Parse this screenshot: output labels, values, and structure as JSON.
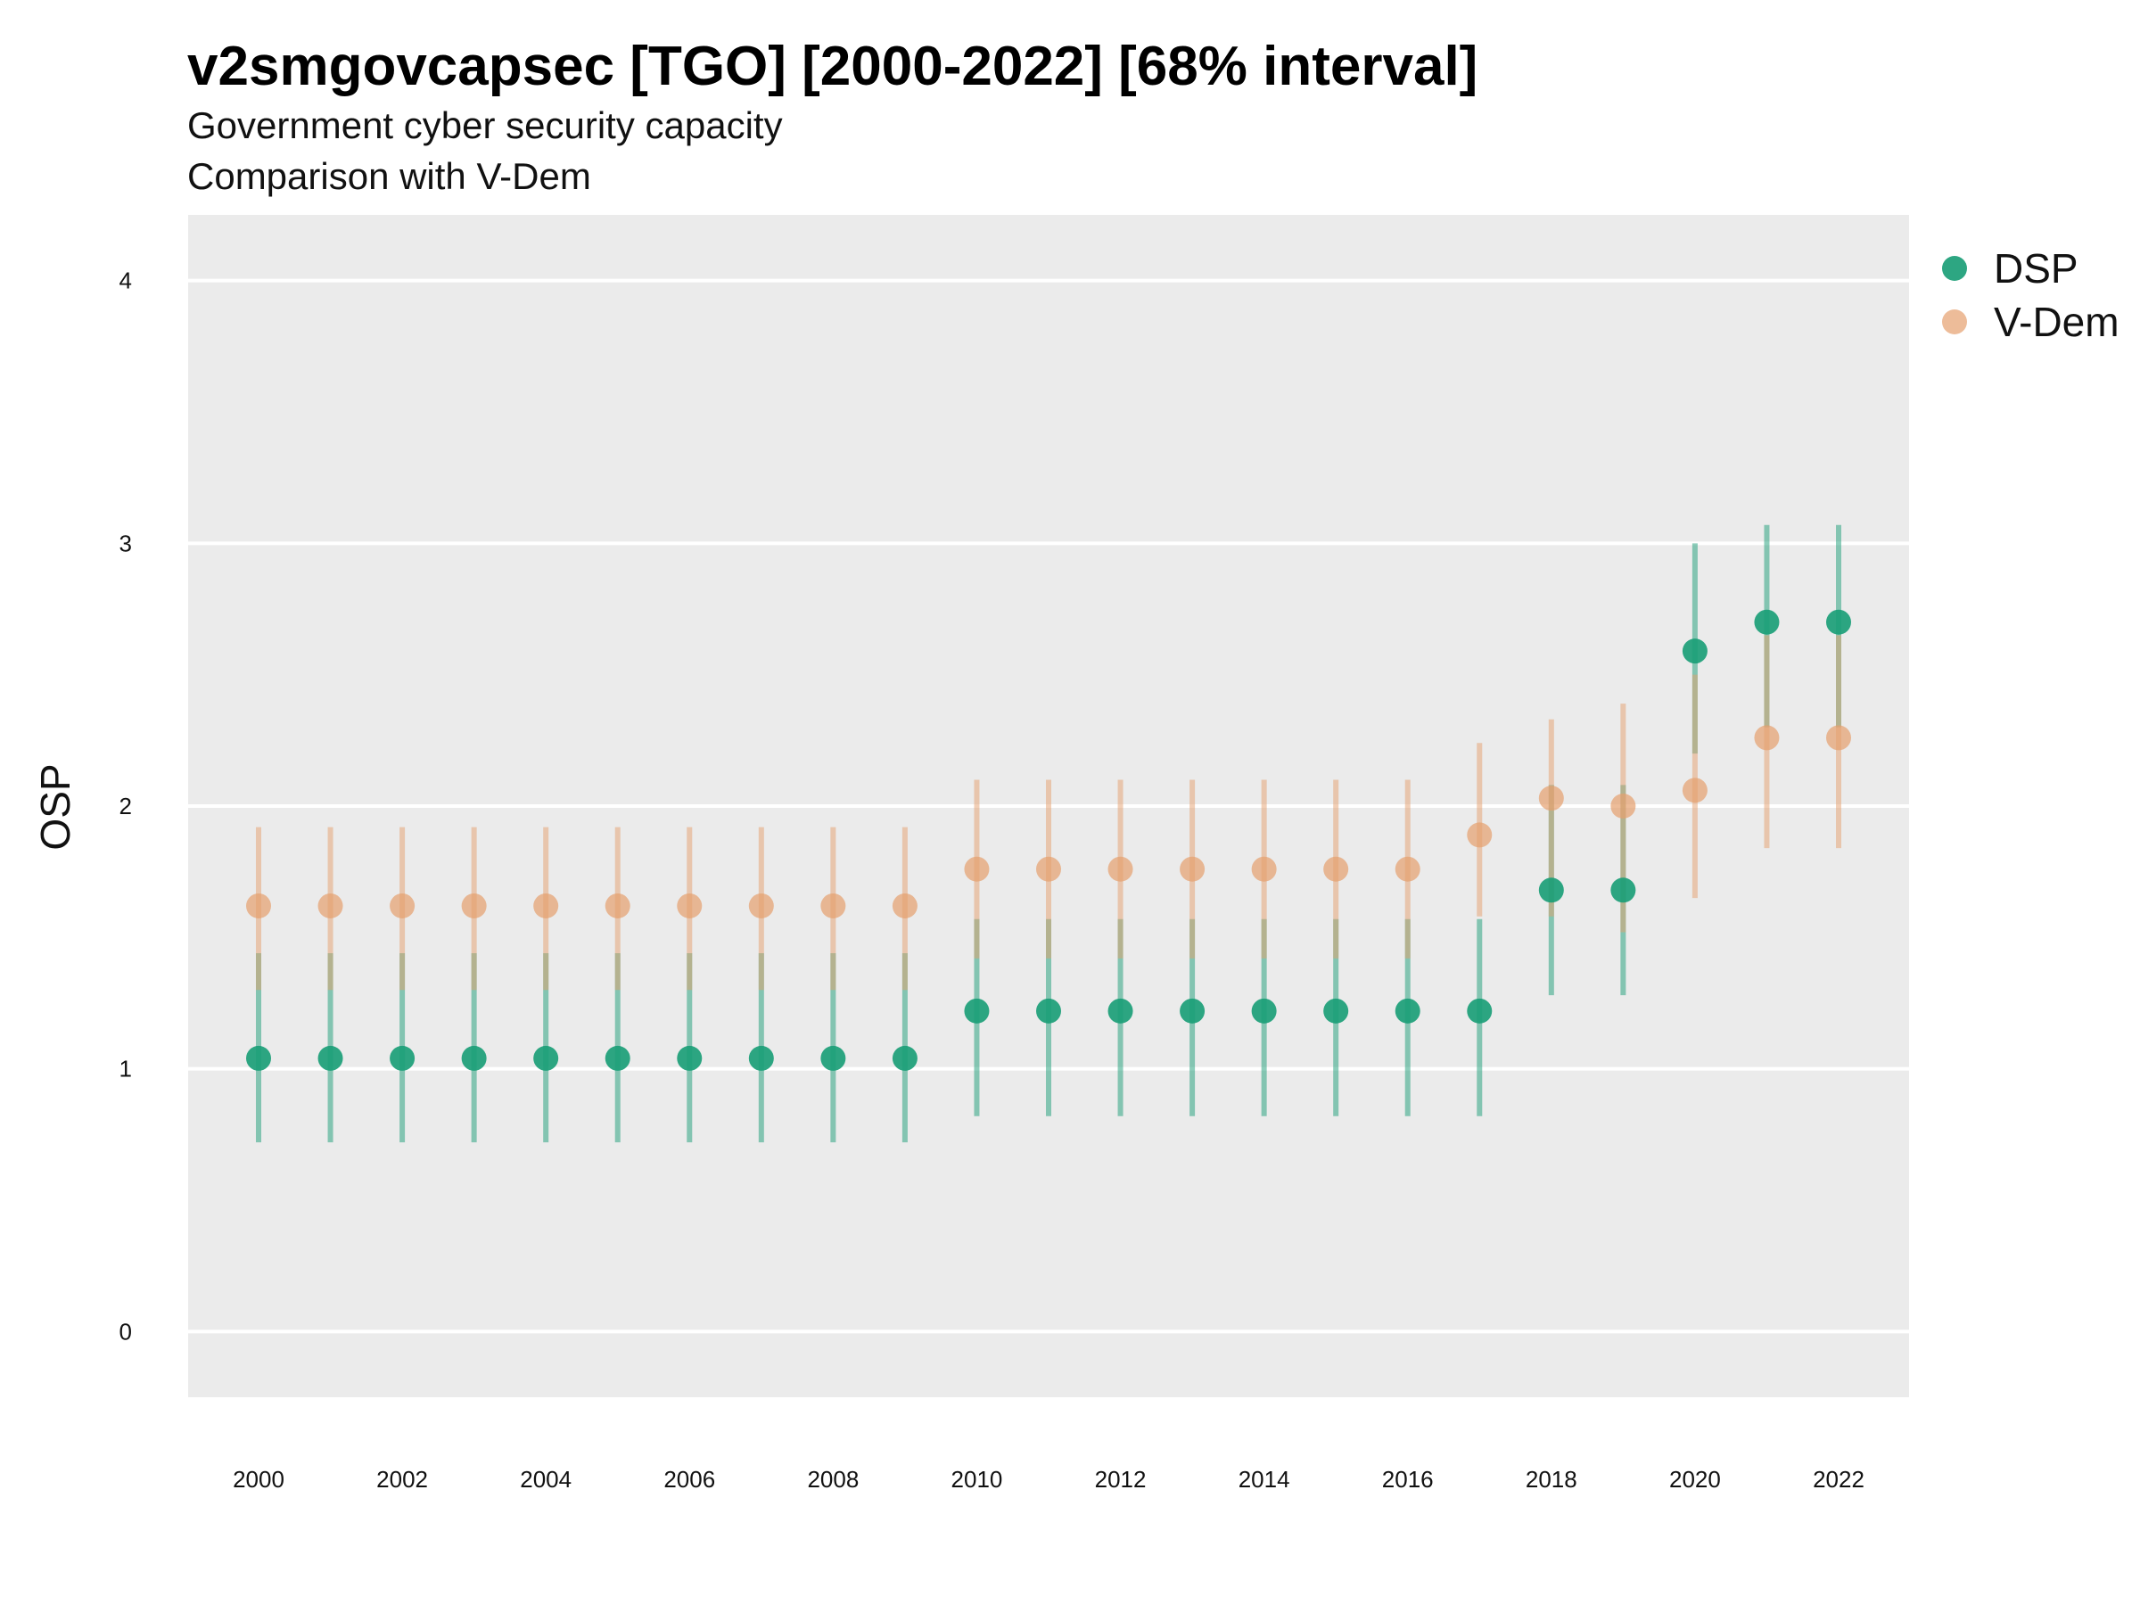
{
  "chart_data": {
    "type": "scatter",
    "title": "v2smgovcapsec [TGO] [2000-2022] [68% interval]",
    "subtitle": "Government cyber security capacity",
    "subtitle2": "Comparison with V-Dem",
    "ylabel": "OSP",
    "xlabel": "",
    "ylim": [
      -0.25,
      4.25
    ],
    "yticks": [
      0,
      1,
      2,
      3,
      4
    ],
    "xticks": [
      2000,
      2002,
      2004,
      2006,
      2008,
      2010,
      2012,
      2014,
      2016,
      2018,
      2020,
      2022
    ],
    "grid": true,
    "legend_position": "right",
    "colors": {
      "DSP": "#1b9e77",
      "V-Dem": "#e6a06e",
      "panel": "#ebebeb",
      "grid": "#ffffff"
    },
    "series": [
      {
        "name": "DSP",
        "x": [
          2000,
          2001,
          2002,
          2003,
          2004,
          2005,
          2006,
          2007,
          2008,
          2009,
          2010,
          2011,
          2012,
          2013,
          2014,
          2015,
          2016,
          2017,
          2018,
          2019,
          2020,
          2021,
          2022
        ],
        "y": [
          1.04,
          1.04,
          1.04,
          1.04,
          1.04,
          1.04,
          1.04,
          1.04,
          1.04,
          1.04,
          1.22,
          1.22,
          1.22,
          1.22,
          1.22,
          1.22,
          1.22,
          1.22,
          1.68,
          1.68,
          2.59,
          2.7,
          2.7
        ],
        "lower": [
          0.72,
          0.72,
          0.72,
          0.72,
          0.72,
          0.72,
          0.72,
          0.72,
          0.72,
          0.72,
          0.82,
          0.82,
          0.82,
          0.82,
          0.82,
          0.82,
          0.82,
          0.82,
          1.28,
          1.28,
          2.2,
          2.3,
          2.3
        ],
        "upper": [
          1.44,
          1.44,
          1.44,
          1.44,
          1.44,
          1.44,
          1.44,
          1.44,
          1.44,
          1.44,
          1.57,
          1.57,
          1.57,
          1.57,
          1.57,
          1.57,
          1.57,
          1.57,
          2.08,
          2.08,
          3.0,
          3.07,
          3.07
        ]
      },
      {
        "name": "V-Dem",
        "x": [
          2000,
          2001,
          2002,
          2003,
          2004,
          2005,
          2006,
          2007,
          2008,
          2009,
          2010,
          2011,
          2012,
          2013,
          2014,
          2015,
          2016,
          2017,
          2018,
          2019,
          2020,
          2021,
          2022
        ],
        "y": [
          1.62,
          1.62,
          1.62,
          1.62,
          1.62,
          1.62,
          1.62,
          1.62,
          1.62,
          1.62,
          1.76,
          1.76,
          1.76,
          1.76,
          1.76,
          1.76,
          1.76,
          1.89,
          2.03,
          2.0,
          2.06,
          2.26,
          2.26
        ],
        "lower": [
          1.3,
          1.3,
          1.3,
          1.3,
          1.3,
          1.3,
          1.3,
          1.3,
          1.3,
          1.3,
          1.42,
          1.42,
          1.42,
          1.42,
          1.42,
          1.42,
          1.42,
          1.58,
          1.58,
          1.52,
          1.65,
          1.84,
          1.84
        ],
        "upper": [
          1.92,
          1.92,
          1.92,
          1.92,
          1.92,
          1.92,
          1.92,
          1.92,
          1.92,
          1.92,
          2.1,
          2.1,
          2.1,
          2.1,
          2.1,
          2.1,
          2.1,
          2.24,
          2.33,
          2.39,
          2.5,
          2.65,
          2.65
        ]
      }
    ]
  }
}
